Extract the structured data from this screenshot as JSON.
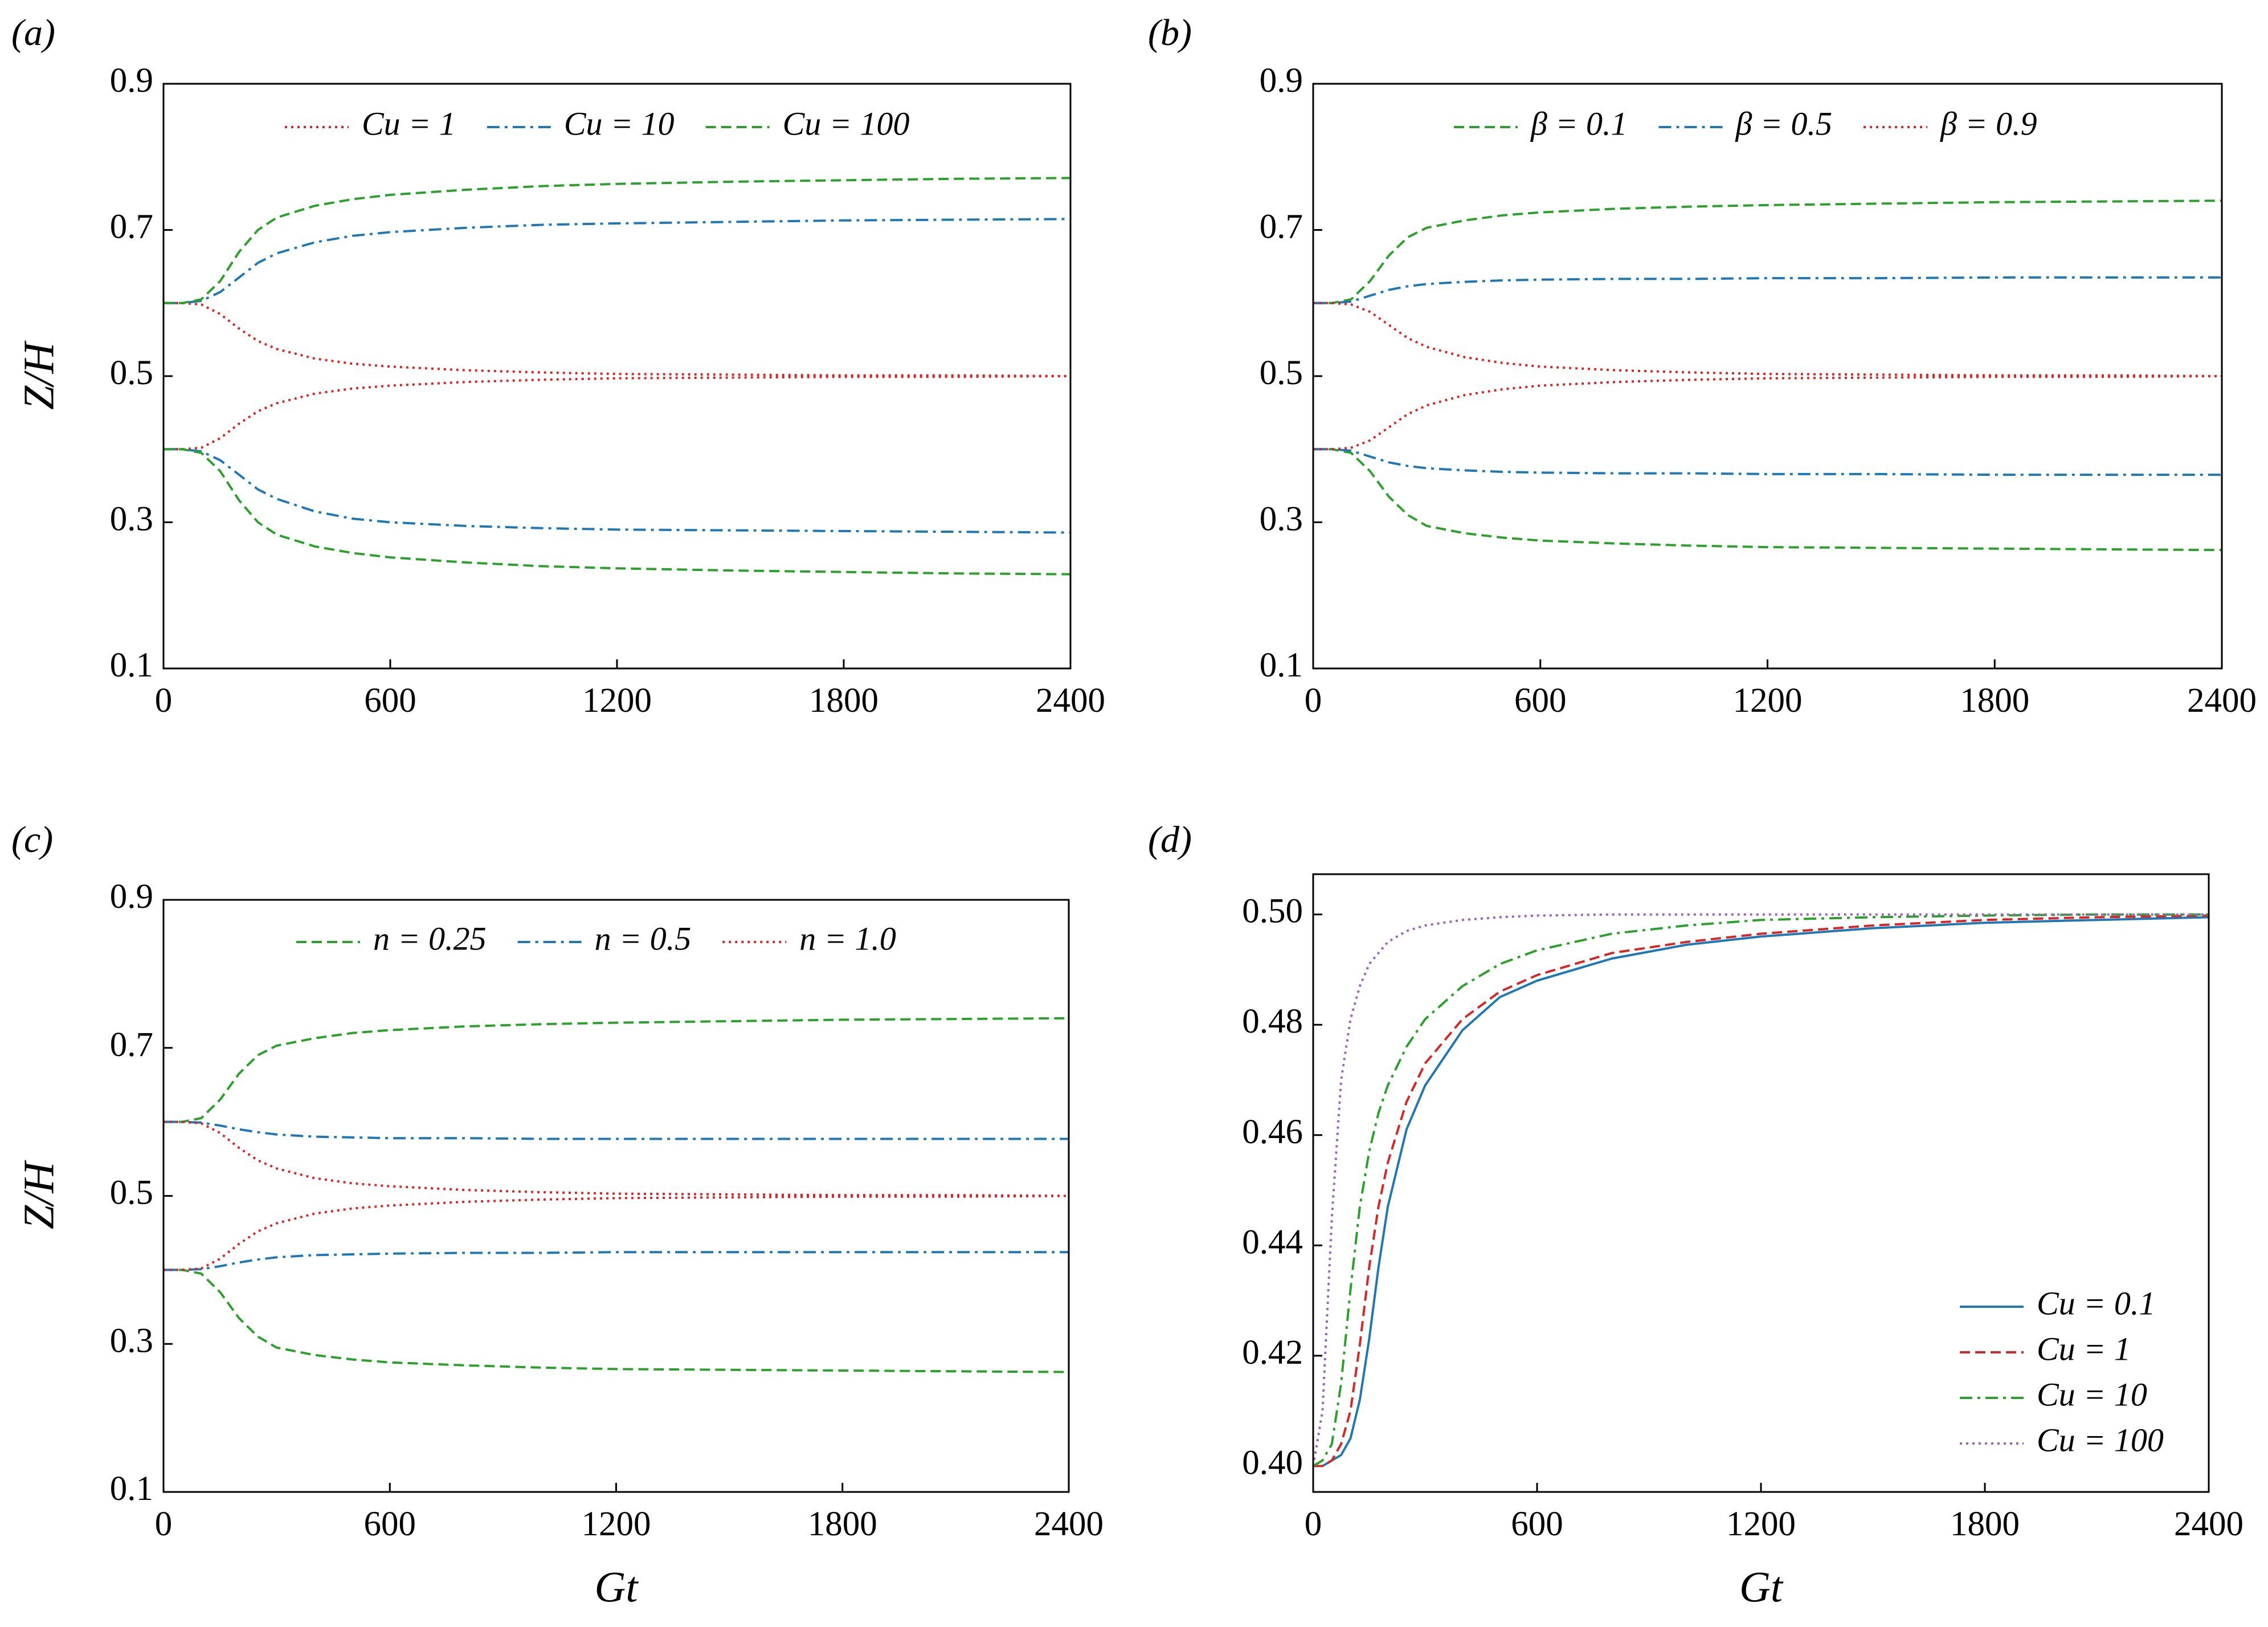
{
  "chart_data": [
    {
      "type": "line",
      "label": "(a)",
      "ylabel": "Z/H",
      "legend": "top",
      "xlim": [
        0,
        2400
      ],
      "xticks": [
        0,
        600,
        1200,
        1800,
        2400
      ],
      "ylim": [
        0.1,
        0.9
      ],
      "yticks": [
        0.1,
        0.3,
        0.5,
        0.7,
        0.9
      ],
      "x": [
        0,
        50,
        100,
        150,
        200,
        250,
        300,
        400,
        500,
        600,
        800,
        1000,
        1200,
        1500,
        1800,
        2100,
        2400
      ],
      "series": [
        {
          "name": "Cu = 1",
          "color": "#d62728",
          "dash": "dotted",
          "upper": [
            0.6,
            0.6,
            0.598,
            0.585,
            0.565,
            0.548,
            0.537,
            0.524,
            0.517,
            0.513,
            0.508,
            0.505,
            0.503,
            0.502,
            0.501,
            0.501,
            0.5
          ],
          "lower": [
            0.4,
            0.4,
            0.402,
            0.415,
            0.435,
            0.452,
            0.463,
            0.476,
            0.483,
            0.487,
            0.492,
            0.495,
            0.497,
            0.498,
            0.499,
            0.499,
            0.5
          ]
        },
        {
          "name": "Cu = 10",
          "color": "#1f77b4",
          "dash": "dashdot",
          "upper": [
            0.6,
            0.6,
            0.603,
            0.615,
            0.635,
            0.655,
            0.668,
            0.683,
            0.692,
            0.697,
            0.703,
            0.707,
            0.709,
            0.711,
            0.713,
            0.714,
            0.715
          ],
          "lower": [
            0.4,
            0.4,
            0.397,
            0.385,
            0.365,
            0.345,
            0.332,
            0.315,
            0.305,
            0.3,
            0.295,
            0.292,
            0.29,
            0.289,
            0.288,
            0.287,
            0.286
          ]
        },
        {
          "name": "Cu = 100",
          "color": "#2ca02c",
          "dash": "dashed",
          "upper": [
            0.6,
            0.6,
            0.605,
            0.63,
            0.67,
            0.7,
            0.717,
            0.733,
            0.742,
            0.748,
            0.755,
            0.76,
            0.763,
            0.766,
            0.768,
            0.77,
            0.771
          ],
          "lower": [
            0.4,
            0.4,
            0.395,
            0.37,
            0.33,
            0.3,
            0.283,
            0.267,
            0.258,
            0.252,
            0.245,
            0.24,
            0.237,
            0.234,
            0.232,
            0.23,
            0.229
          ]
        }
      ]
    },
    {
      "type": "line",
      "label": "(b)",
      "legend": "top",
      "xlim": [
        0,
        2400
      ],
      "xticks": [
        0,
        600,
        1200,
        1800,
        2400
      ],
      "ylim": [
        0.1,
        0.9
      ],
      "yticks": [
        0.1,
        0.3,
        0.5,
        0.7,
        0.9
      ],
      "x": [
        0,
        50,
        100,
        150,
        200,
        250,
        300,
        400,
        500,
        600,
        800,
        1000,
        1200,
        1500,
        1800,
        2100,
        2400
      ],
      "series": [
        {
          "name": "β = 0.1",
          "color": "#2ca02c",
          "dash": "dashed",
          "upper": [
            0.6,
            0.6,
            0.605,
            0.63,
            0.665,
            0.69,
            0.703,
            0.713,
            0.72,
            0.724,
            0.729,
            0.732,
            0.734,
            0.736,
            0.738,
            0.739,
            0.74
          ],
          "lower": [
            0.4,
            0.4,
            0.395,
            0.37,
            0.335,
            0.31,
            0.295,
            0.285,
            0.279,
            0.275,
            0.271,
            0.268,
            0.266,
            0.265,
            0.264,
            0.263,
            0.262
          ]
        },
        {
          "name": "β = 0.5",
          "color": "#1f77b4",
          "dash": "dashdot",
          "upper": [
            0.6,
            0.6,
            0.602,
            0.61,
            0.618,
            0.623,
            0.626,
            0.629,
            0.631,
            0.632,
            0.633,
            0.633,
            0.634,
            0.634,
            0.635,
            0.635,
            0.635
          ],
          "lower": [
            0.4,
            0.4,
            0.398,
            0.39,
            0.382,
            0.377,
            0.374,
            0.371,
            0.369,
            0.368,
            0.367,
            0.367,
            0.366,
            0.366,
            0.365,
            0.365,
            0.365
          ]
        },
        {
          "name": "β = 0.9",
          "color": "#d62728",
          "dash": "dotted",
          "upper": [
            0.6,
            0.6,
            0.598,
            0.588,
            0.57,
            0.552,
            0.54,
            0.526,
            0.518,
            0.513,
            0.508,
            0.505,
            0.503,
            0.502,
            0.501,
            0.501,
            0.5
          ],
          "lower": [
            0.4,
            0.4,
            0.402,
            0.412,
            0.43,
            0.448,
            0.46,
            0.474,
            0.482,
            0.487,
            0.492,
            0.495,
            0.497,
            0.498,
            0.499,
            0.499,
            0.5
          ]
        }
      ]
    },
    {
      "type": "line",
      "label": "(c)",
      "ylabel": "Z/H",
      "xlabel": "Gt",
      "legend": "top",
      "xlim": [
        0,
        2400
      ],
      "xticks": [
        0,
        600,
        1200,
        1800,
        2400
      ],
      "ylim": [
        0.1,
        0.9
      ],
      "yticks": [
        0.1,
        0.3,
        0.5,
        0.7,
        0.9
      ],
      "x": [
        0,
        50,
        100,
        150,
        200,
        250,
        300,
        400,
        500,
        600,
        800,
        1000,
        1200,
        1500,
        1800,
        2100,
        2400
      ],
      "series": [
        {
          "name": "n = 0.25",
          "color": "#2ca02c",
          "dash": "dashed",
          "upper": [
            0.6,
            0.6,
            0.605,
            0.63,
            0.665,
            0.69,
            0.703,
            0.713,
            0.72,
            0.724,
            0.729,
            0.732,
            0.734,
            0.736,
            0.738,
            0.739,
            0.74
          ],
          "lower": [
            0.4,
            0.4,
            0.395,
            0.37,
            0.335,
            0.31,
            0.295,
            0.285,
            0.279,
            0.275,
            0.271,
            0.268,
            0.266,
            0.265,
            0.264,
            0.263,
            0.262
          ]
        },
        {
          "name": "n = 0.5",
          "color": "#1f77b4",
          "dash": "dashdot",
          "upper": [
            0.6,
            0.6,
            0.599,
            0.595,
            0.59,
            0.586,
            0.583,
            0.58,
            0.579,
            0.578,
            0.578,
            0.577,
            0.577,
            0.577,
            0.577,
            0.577,
            0.577
          ],
          "lower": [
            0.4,
            0.4,
            0.401,
            0.405,
            0.41,
            0.414,
            0.417,
            0.42,
            0.421,
            0.422,
            0.423,
            0.423,
            0.424,
            0.424,
            0.424,
            0.424,
            0.424
          ]
        },
        {
          "name": "n = 1.0",
          "color": "#d62728",
          "dash": "dotted",
          "upper": [
            0.6,
            0.6,
            0.598,
            0.585,
            0.565,
            0.548,
            0.537,
            0.524,
            0.517,
            0.513,
            0.508,
            0.505,
            0.503,
            0.502,
            0.501,
            0.501,
            0.5
          ],
          "lower": [
            0.4,
            0.4,
            0.402,
            0.415,
            0.435,
            0.452,
            0.463,
            0.476,
            0.483,
            0.487,
            0.492,
            0.495,
            0.497,
            0.498,
            0.499,
            0.499,
            0.5
          ]
        }
      ]
    },
    {
      "type": "line",
      "label": "(d)",
      "xlabel": "Gt",
      "legend": "lower right",
      "xlim": [
        0,
        2400
      ],
      "xticks": [
        0,
        600,
        1200,
        1800,
        2400
      ],
      "ylim": [
        0.3953,
        0.5073
      ],
      "yticks": [
        {
          "value": 0.4,
          "label": "0.40"
        },
        0.42,
        0.44,
        0.46,
        0.48,
        {
          "value": 0.5,
          "label": "0.50"
        }
      ],
      "x": [
        0,
        25,
        50,
        75,
        100,
        125,
        150,
        175,
        200,
        250,
        300,
        400,
        500,
        600,
        800,
        1000,
        1200,
        1500,
        1800,
        2100,
        2400
      ],
      "series": [
        {
          "name": "Cu = 0.1",
          "color": "#1f77b4",
          "dash": "solid",
          "values": [
            0.4,
            0.4,
            0.401,
            0.402,
            0.405,
            0.412,
            0.423,
            0.436,
            0.447,
            0.461,
            0.469,
            0.479,
            0.485,
            0.488,
            0.492,
            0.4945,
            0.496,
            0.4975,
            0.4985,
            0.499,
            0.4995
          ]
        },
        {
          "name": "Cu = 1",
          "color": "#d62728",
          "dash": "dashed",
          "values": [
            0.4,
            0.4,
            0.401,
            0.404,
            0.41,
            0.422,
            0.436,
            0.447,
            0.455,
            0.466,
            0.473,
            0.481,
            0.486,
            0.489,
            0.493,
            0.495,
            0.4965,
            0.498,
            0.499,
            0.4995,
            0.4998
          ]
        },
        {
          "name": "Cu = 10",
          "color": "#2ca02c",
          "dash": "dashdot",
          "values": [
            0.4,
            0.401,
            0.404,
            0.415,
            0.432,
            0.447,
            0.457,
            0.464,
            0.469,
            0.476,
            0.481,
            0.487,
            0.491,
            0.4935,
            0.4965,
            0.498,
            0.499,
            0.4995,
            0.4998,
            0.5,
            0.5
          ]
        },
        {
          "name": "Cu = 100",
          "color": "#9467bd",
          "dash": "dotted",
          "values": [
            0.4,
            0.41,
            0.445,
            0.47,
            0.481,
            0.487,
            0.491,
            0.493,
            0.495,
            0.497,
            0.498,
            0.499,
            0.4995,
            0.4998,
            0.5,
            0.5,
            0.5,
            0.5,
            0.5,
            0.5,
            0.5
          ]
        }
      ]
    }
  ]
}
